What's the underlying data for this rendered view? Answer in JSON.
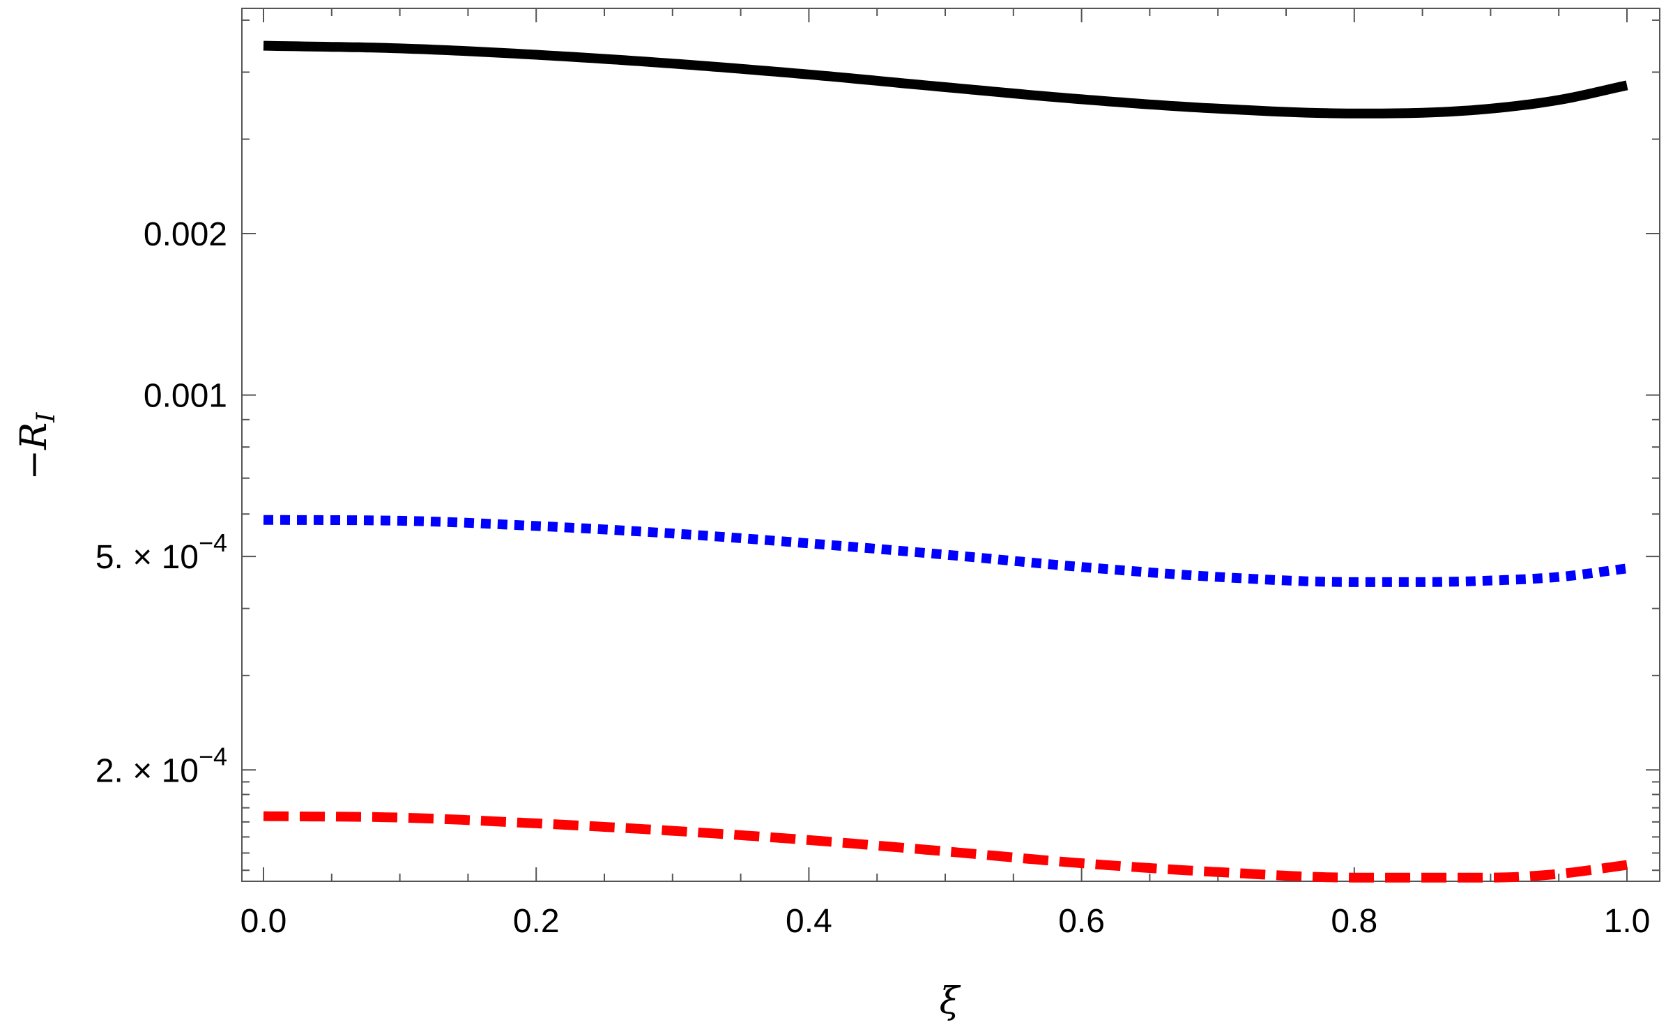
{
  "chart_data": {
    "type": "line",
    "title": "",
    "xlabel": "ξ",
    "ylabel_prefix": "−R",
    "ylabel_sub": "I",
    "x_scale": "linear",
    "y_scale": "log",
    "xlim": [
      0.0,
      1.0
    ],
    "ylim": [
      0.000124,
      0.00526
    ],
    "grid": false,
    "legend": "none",
    "x_ticks": [
      {
        "value": 0.0,
        "label": "0.0"
      },
      {
        "value": 0.2,
        "label": "0.2"
      },
      {
        "value": 0.4,
        "label": "0.4"
      },
      {
        "value": 0.6,
        "label": "0.6"
      },
      {
        "value": 0.8,
        "label": "0.8"
      },
      {
        "value": 1.0,
        "label": "1.0"
      }
    ],
    "y_ticks": [
      {
        "value": 0.0002,
        "mantissa": "2.",
        "times": "×",
        "base": "10",
        "exponent": "−4"
      },
      {
        "value": 0.0005,
        "mantissa": "5.",
        "times": "×",
        "base": "10",
        "exponent": "−4"
      },
      {
        "value": 0.001,
        "label": "0.001"
      },
      {
        "value": 0.002,
        "label": "0.002"
      }
    ],
    "y_minor_ticks": [
      0.00013,
      0.00014,
      0.00015,
      0.00016,
      0.00017,
      0.00018,
      0.00019,
      0.0003,
      0.0004,
      0.0006,
      0.0007,
      0.0008,
      0.0009,
      0.003,
      0.004,
      0.005
    ],
    "x": [
      0.0,
      0.1,
      0.2,
      0.3,
      0.4,
      0.5,
      0.6,
      0.7,
      0.8,
      0.85,
      0.9,
      0.95,
      1.0
    ],
    "series": [
      {
        "color": "#000000",
        "style": "solid",
        "values": [
          0.00448,
          0.00443,
          0.00431,
          0.00415,
          0.00396,
          0.00375,
          0.00356,
          0.00342,
          0.00335,
          0.00336,
          0.00342,
          0.00355,
          0.00378
        ]
      },
      {
        "color": "#0000ff",
        "style": "dotted",
        "values": [
          0.000585,
          0.000583,
          0.00057,
          0.000552,
          0.000529,
          0.000504,
          0.000478,
          0.000458,
          0.000448,
          0.000448,
          0.000451,
          0.000458,
          0.000475
        ]
      },
      {
        "color": "#ff0000",
        "style": "dashed",
        "values": [
          0.000164,
          0.000163,
          0.000159,
          0.000154,
          0.000148,
          0.000141,
          0.000134,
          0.000129,
          0.000126,
          0.000126,
          0.000126,
          0.000128,
          0.000133
        ]
      }
    ]
  }
}
